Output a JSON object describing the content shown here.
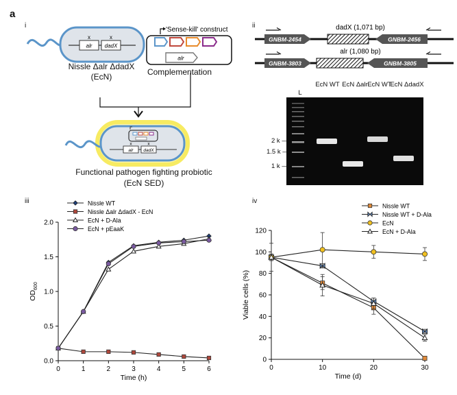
{
  "figure": {
    "panel_letter": "a",
    "sub_i": "i",
    "sub_ii": "ii",
    "sub_iii": "iii",
    "sub_iv": "iv"
  },
  "panel_i": {
    "strain_line1": "Nissle Δalr ΔdadX",
    "strain_line2": "(EcN)",
    "construct_title": "'Sense-kill' construct",
    "complementation": "Complementation",
    "final_line1": "Functional pathogen fighting probiotic",
    "final_line2": "(EcN SED)",
    "gene_alr": "alr",
    "gene_dadx": "dadX",
    "x_mark": "x"
  },
  "panel_ii": {
    "dadx_label": "dadX (1,071 bp)",
    "alr_label": "alr (1,080 bp)",
    "genes_row1": [
      "GNBM-2454",
      "GNBM-2456"
    ],
    "genes_row2": [
      "GNBM-3803",
      "GNBM-3805"
    ],
    "lanes": [
      "L",
      "EcN WT",
      "EcN Δalr",
      "EcN WT",
      "EcN ΔdadX"
    ],
    "ladder_marks": [
      "2 k",
      "1.5 k",
      "1 k"
    ]
  },
  "chart_data": [
    {
      "type": "line",
      "panel": "iii",
      "xlabel": "Time (h)",
      "ylabel": "OD600",
      "xlim": [
        0,
        6
      ],
      "ylim": [
        0,
        2.0
      ],
      "xticks": [
        0,
        1,
        2,
        3,
        4,
        5,
        6
      ],
      "yticks": [
        0.0,
        0.5,
        1.0,
        1.5,
        2.0
      ],
      "x": [
        0,
        1,
        2,
        3,
        4,
        5,
        6
      ],
      "legend_position": "top-left",
      "series": [
        {
          "name": "Nissle WT",
          "marker": "diamond",
          "color": "#1f3f7a",
          "values": [
            0.18,
            0.71,
            1.42,
            1.66,
            1.71,
            1.74,
            1.8
          ]
        },
        {
          "name": "Nissle Δalr ΔdadX - EcN",
          "marker": "square",
          "color": "#b0483c",
          "values": [
            0.18,
            0.13,
            0.13,
            0.12,
            0.09,
            0.06,
            0.04
          ]
        },
        {
          "name": "EcN + D-Ala",
          "marker": "triangle",
          "color": "#6b6b3a",
          "values": [
            0.18,
            0.71,
            1.32,
            1.58,
            1.65,
            1.69,
            1.76
          ]
        },
        {
          "name": "EcN + pEaaK",
          "marker": "circle",
          "color": "#7a5aa0",
          "values": [
            0.18,
            0.71,
            1.4,
            1.65,
            1.7,
            1.72,
            1.74
          ]
        }
      ]
    },
    {
      "type": "line",
      "panel": "iv",
      "xlabel": "Time (d)",
      "ylabel": "Viable cells (%)",
      "xlim": [
        0,
        30
      ],
      "ylim": [
        0,
        120
      ],
      "xticks": [
        0,
        10,
        20,
        30
      ],
      "yticks": [
        0,
        20,
        40,
        60,
        80,
        100,
        120
      ],
      "x": [
        0,
        10,
        20,
        30
      ],
      "legend_position": "top-right",
      "series": [
        {
          "name": "Nissle WT",
          "marker": "square",
          "color": "#e08a3a",
          "values": [
            95,
            71,
            48,
            1
          ],
          "err": [
            13,
            6,
            6,
            0
          ]
        },
        {
          "name": "Nissle WT + D-Ala",
          "marker": "bowtie",
          "color": "#5a7fb0",
          "values": [
            95,
            87,
            54,
            26
          ],
          "err": [
            3,
            2,
            3,
            2
          ]
        },
        {
          "name": "EcN",
          "marker": "circle",
          "color": "#f0c020",
          "values": [
            95,
            102,
            100,
            98
          ],
          "err": [
            3,
            16,
            6,
            6
          ]
        },
        {
          "name": "EcN + D-Ala",
          "marker": "triangle",
          "color": "#6b6b3a",
          "values": [
            95,
            69,
            52,
            20
          ],
          "err": [
            3,
            10,
            5,
            3
          ]
        }
      ]
    }
  ]
}
